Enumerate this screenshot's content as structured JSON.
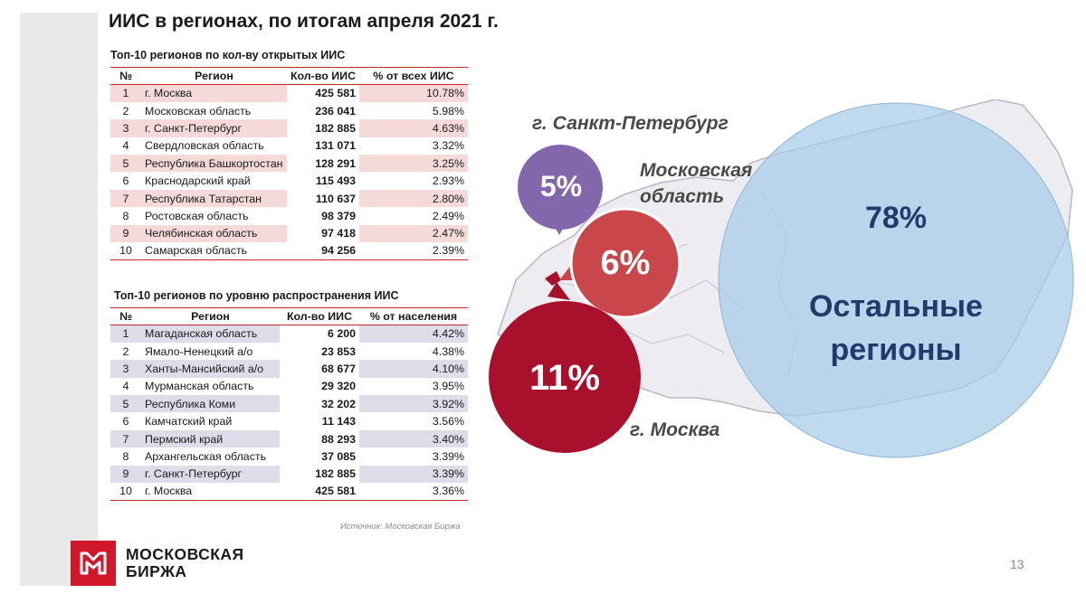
{
  "title": "ИИС в регионах, по итогам апреля 2021 г.",
  "table_top_open": {
    "caption": "Топ-10 регионов по кол-ву открытых ИИС",
    "headers": [
      "№",
      "Регион",
      "Кол-во ИИС",
      "% от всех ИИС"
    ],
    "rows": [
      {
        "num": "1",
        "region": "г. Москва",
        "count": "425 581",
        "pct": "10.78%"
      },
      {
        "num": "2",
        "region": "Московская область",
        "count": "236 041",
        "pct": "5.98%"
      },
      {
        "num": "3",
        "region": "г. Санкт-Петербург",
        "count": "182 885",
        "pct": "4.63%"
      },
      {
        "num": "4",
        "region": "Свердловская область",
        "count": "131 071",
        "pct": "3.32%"
      },
      {
        "num": "5",
        "region": "Республика Башкортостан",
        "count": "128 291",
        "pct": "3.25%"
      },
      {
        "num": "6",
        "region": "Краснодарский край",
        "count": "115 493",
        "pct": "2.93%"
      },
      {
        "num": "7",
        "region": "Республика Татарстан",
        "count": "110 637",
        "pct": "2.80%"
      },
      {
        "num": "8",
        "region": "Ростовская область",
        "count": "98 379",
        "pct": "2.49%"
      },
      {
        "num": "9",
        "region": "Челябинская область",
        "count": "97 418",
        "pct": "2.47%"
      },
      {
        "num": "10",
        "region": "Самарская область",
        "count": "94 256",
        "pct": "2.39%"
      }
    ]
  },
  "table_top_share": {
    "caption": "Топ-10 регионов по уровню распространения ИИС",
    "headers": [
      "№",
      "Регион",
      "Кол-во ИИС",
      "% от населения"
    ],
    "rows": [
      {
        "num": "1",
        "region": "Магаданская область",
        "count": "6 200",
        "pct": "4.42%"
      },
      {
        "num": "2",
        "region": "Ямало-Ненецкий а/о",
        "count": "23 853",
        "pct": "4.38%"
      },
      {
        "num": "3",
        "region": "Ханты-Мансийский а/о",
        "count": "68 677",
        "pct": "4.10%"
      },
      {
        "num": "4",
        "region": "Мурманская область",
        "count": "29 320",
        "pct": "3.95%"
      },
      {
        "num": "5",
        "region": "Республика Коми",
        "count": "32 202",
        "pct": "3.92%"
      },
      {
        "num": "6",
        "region": "Камчатский край",
        "count": "11 143",
        "pct": "3.56%"
      },
      {
        "num": "7",
        "region": "Пермский край",
        "count": "88 293",
        "pct": "3.40%"
      },
      {
        "num": "8",
        "region": "Архангельская область",
        "count": "37 085",
        "pct": "3.39%"
      },
      {
        "num": "9",
        "region": "г. Санкт-Петербург",
        "count": "182 885",
        "pct": "3.39%"
      },
      {
        "num": "10",
        "region": "г. Москва",
        "count": "425 581",
        "pct": "3.36%"
      }
    ]
  },
  "source": "Источник: Московская Биржа",
  "logo": {
    "line1": "МОСКОВСКАЯ",
    "line2": "БИРЖА",
    "color": "#d0182a"
  },
  "page_number": "13",
  "chart_data": {
    "type": "bubble",
    "title": "",
    "series": [
      {
        "name": "г. Москва",
        "value_label": "11%",
        "value": 11,
        "color": "#a8102b"
      },
      {
        "name": "Московская область",
        "value_label": "6%",
        "value": 6,
        "color": "#c9474a"
      },
      {
        "name": "г. Санкт-Петербург",
        "value_label": "5%",
        "value": 5,
        "color": "#8367ad"
      },
      {
        "name": "Остальные регионы",
        "value_label": "78%",
        "value": 78,
        "color": "#a9cce8"
      }
    ],
    "labels": {
      "spb": "г. Санкт-Петербург",
      "mo_line1": "Московская",
      "mo_line2": "область",
      "moscow": "г. Москва",
      "rest_line1": "Остальные",
      "rest_line2": "регионы"
    }
  }
}
